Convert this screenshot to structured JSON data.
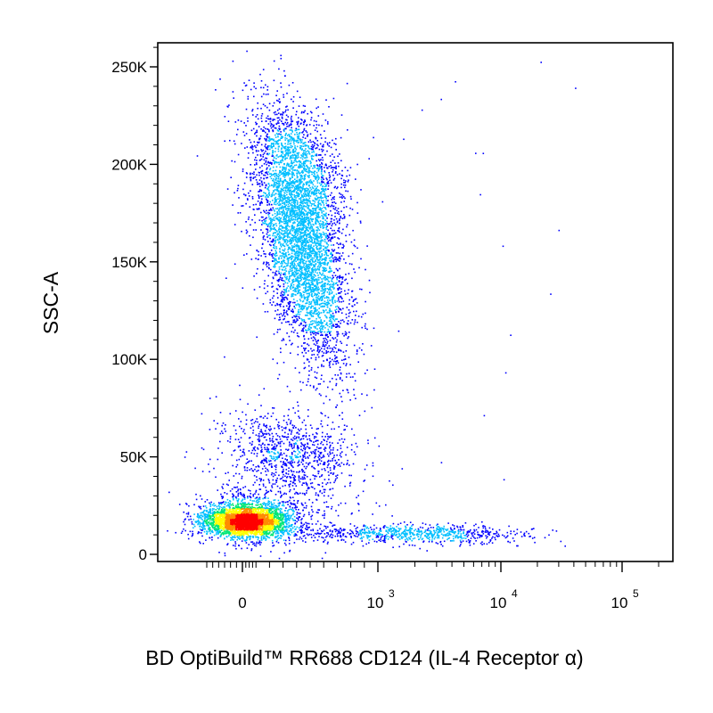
{
  "chart_data": {
    "type": "scatter",
    "title": "",
    "xlabel": "BD OptiBuild™ RR688 CD124 (IL-4 Receptor α)",
    "ylabel": "SSC-A",
    "x_scale": "biexponential",
    "ylim": [
      0,
      262144
    ],
    "xlim": [
      -150,
      262144
    ],
    "y_ticks": [
      {
        "value": 0,
        "label": "0"
      },
      {
        "value": 50000,
        "label": "50K"
      },
      {
        "value": 100000,
        "label": "100K"
      },
      {
        "value": 150000,
        "label": "150K"
      },
      {
        "value": 200000,
        "label": "200K"
      },
      {
        "value": 250000,
        "label": "250K"
      }
    ],
    "x_ticks": [
      {
        "value": 0,
        "base": "0",
        "exp": ""
      },
      {
        "value": 1000,
        "base": "10",
        "exp": "3"
      },
      {
        "value": 10000,
        "base": "10",
        "exp": "4"
      },
      {
        "value": 100000,
        "base": "10",
        "exp": "5"
      }
    ],
    "color_scale": [
      "#0000ff",
      "#00bfff",
      "#00e676",
      "#ffff00",
      "#ff8c00",
      "#ff0000"
    ],
    "grid": false,
    "populations": [
      {
        "label": "",
        "x_center": 20,
        "y_center": 17000,
        "approx_fraction": 0.34,
        "peak_density": "high"
      },
      {
        "label": "",
        "x_center": 420,
        "y_center": 160000,
        "approx_fraction": 0.48,
        "peak_density": "medium"
      },
      {
        "label": "",
        "x_center": 330,
        "y_center": 53000,
        "approx_fraction": 0.09,
        "peak_density": "low"
      },
      {
        "label": "",
        "x_center": 2500,
        "y_center": 11000,
        "approx_fraction": 0.09,
        "peak_density": "low"
      }
    ]
  }
}
